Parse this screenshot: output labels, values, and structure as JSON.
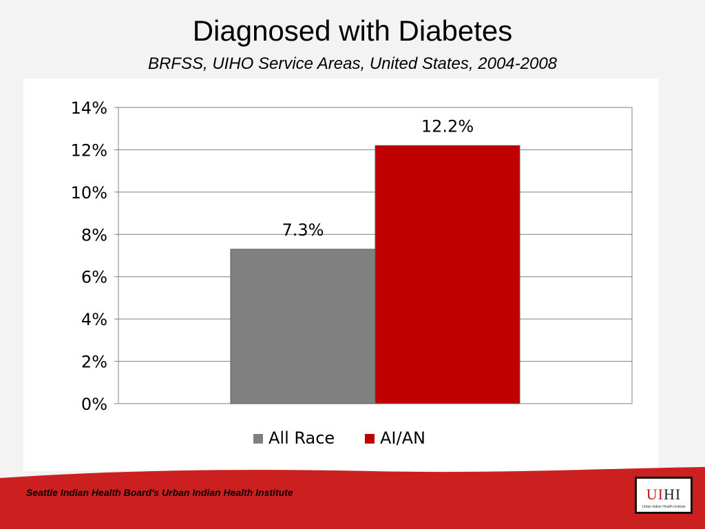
{
  "slide": {
    "title": "Diagnosed with Diabetes",
    "subtitle": "BRFSS, UIHO Service Areas, United States, 2004-2008"
  },
  "chart_data": {
    "type": "bar",
    "categories": [
      ""
    ],
    "series": [
      {
        "name": "All Race",
        "values": [
          7.3
        ],
        "label": "7.3%",
        "color": "#808080"
      },
      {
        "name": "AI/AN",
        "values": [
          12.2
        ],
        "label": "12.2%",
        "color": "#c00000"
      }
    ],
    "ylim": [
      0,
      14
    ],
    "yticks": [
      0,
      2,
      4,
      6,
      8,
      10,
      12,
      14
    ],
    "ytick_labels": [
      "0%",
      "2%",
      "4%",
      "6%",
      "8%",
      "10%",
      "12%",
      "14%"
    ],
    "grid": true,
    "legend_position": "bottom"
  },
  "footer": {
    "text": "Seattle Indian Health Board's Urban Indian Health Institute",
    "band_color": "#cc2020",
    "logo_text": "UIHI",
    "logo_caption": "Urban Indian Health Institute"
  }
}
